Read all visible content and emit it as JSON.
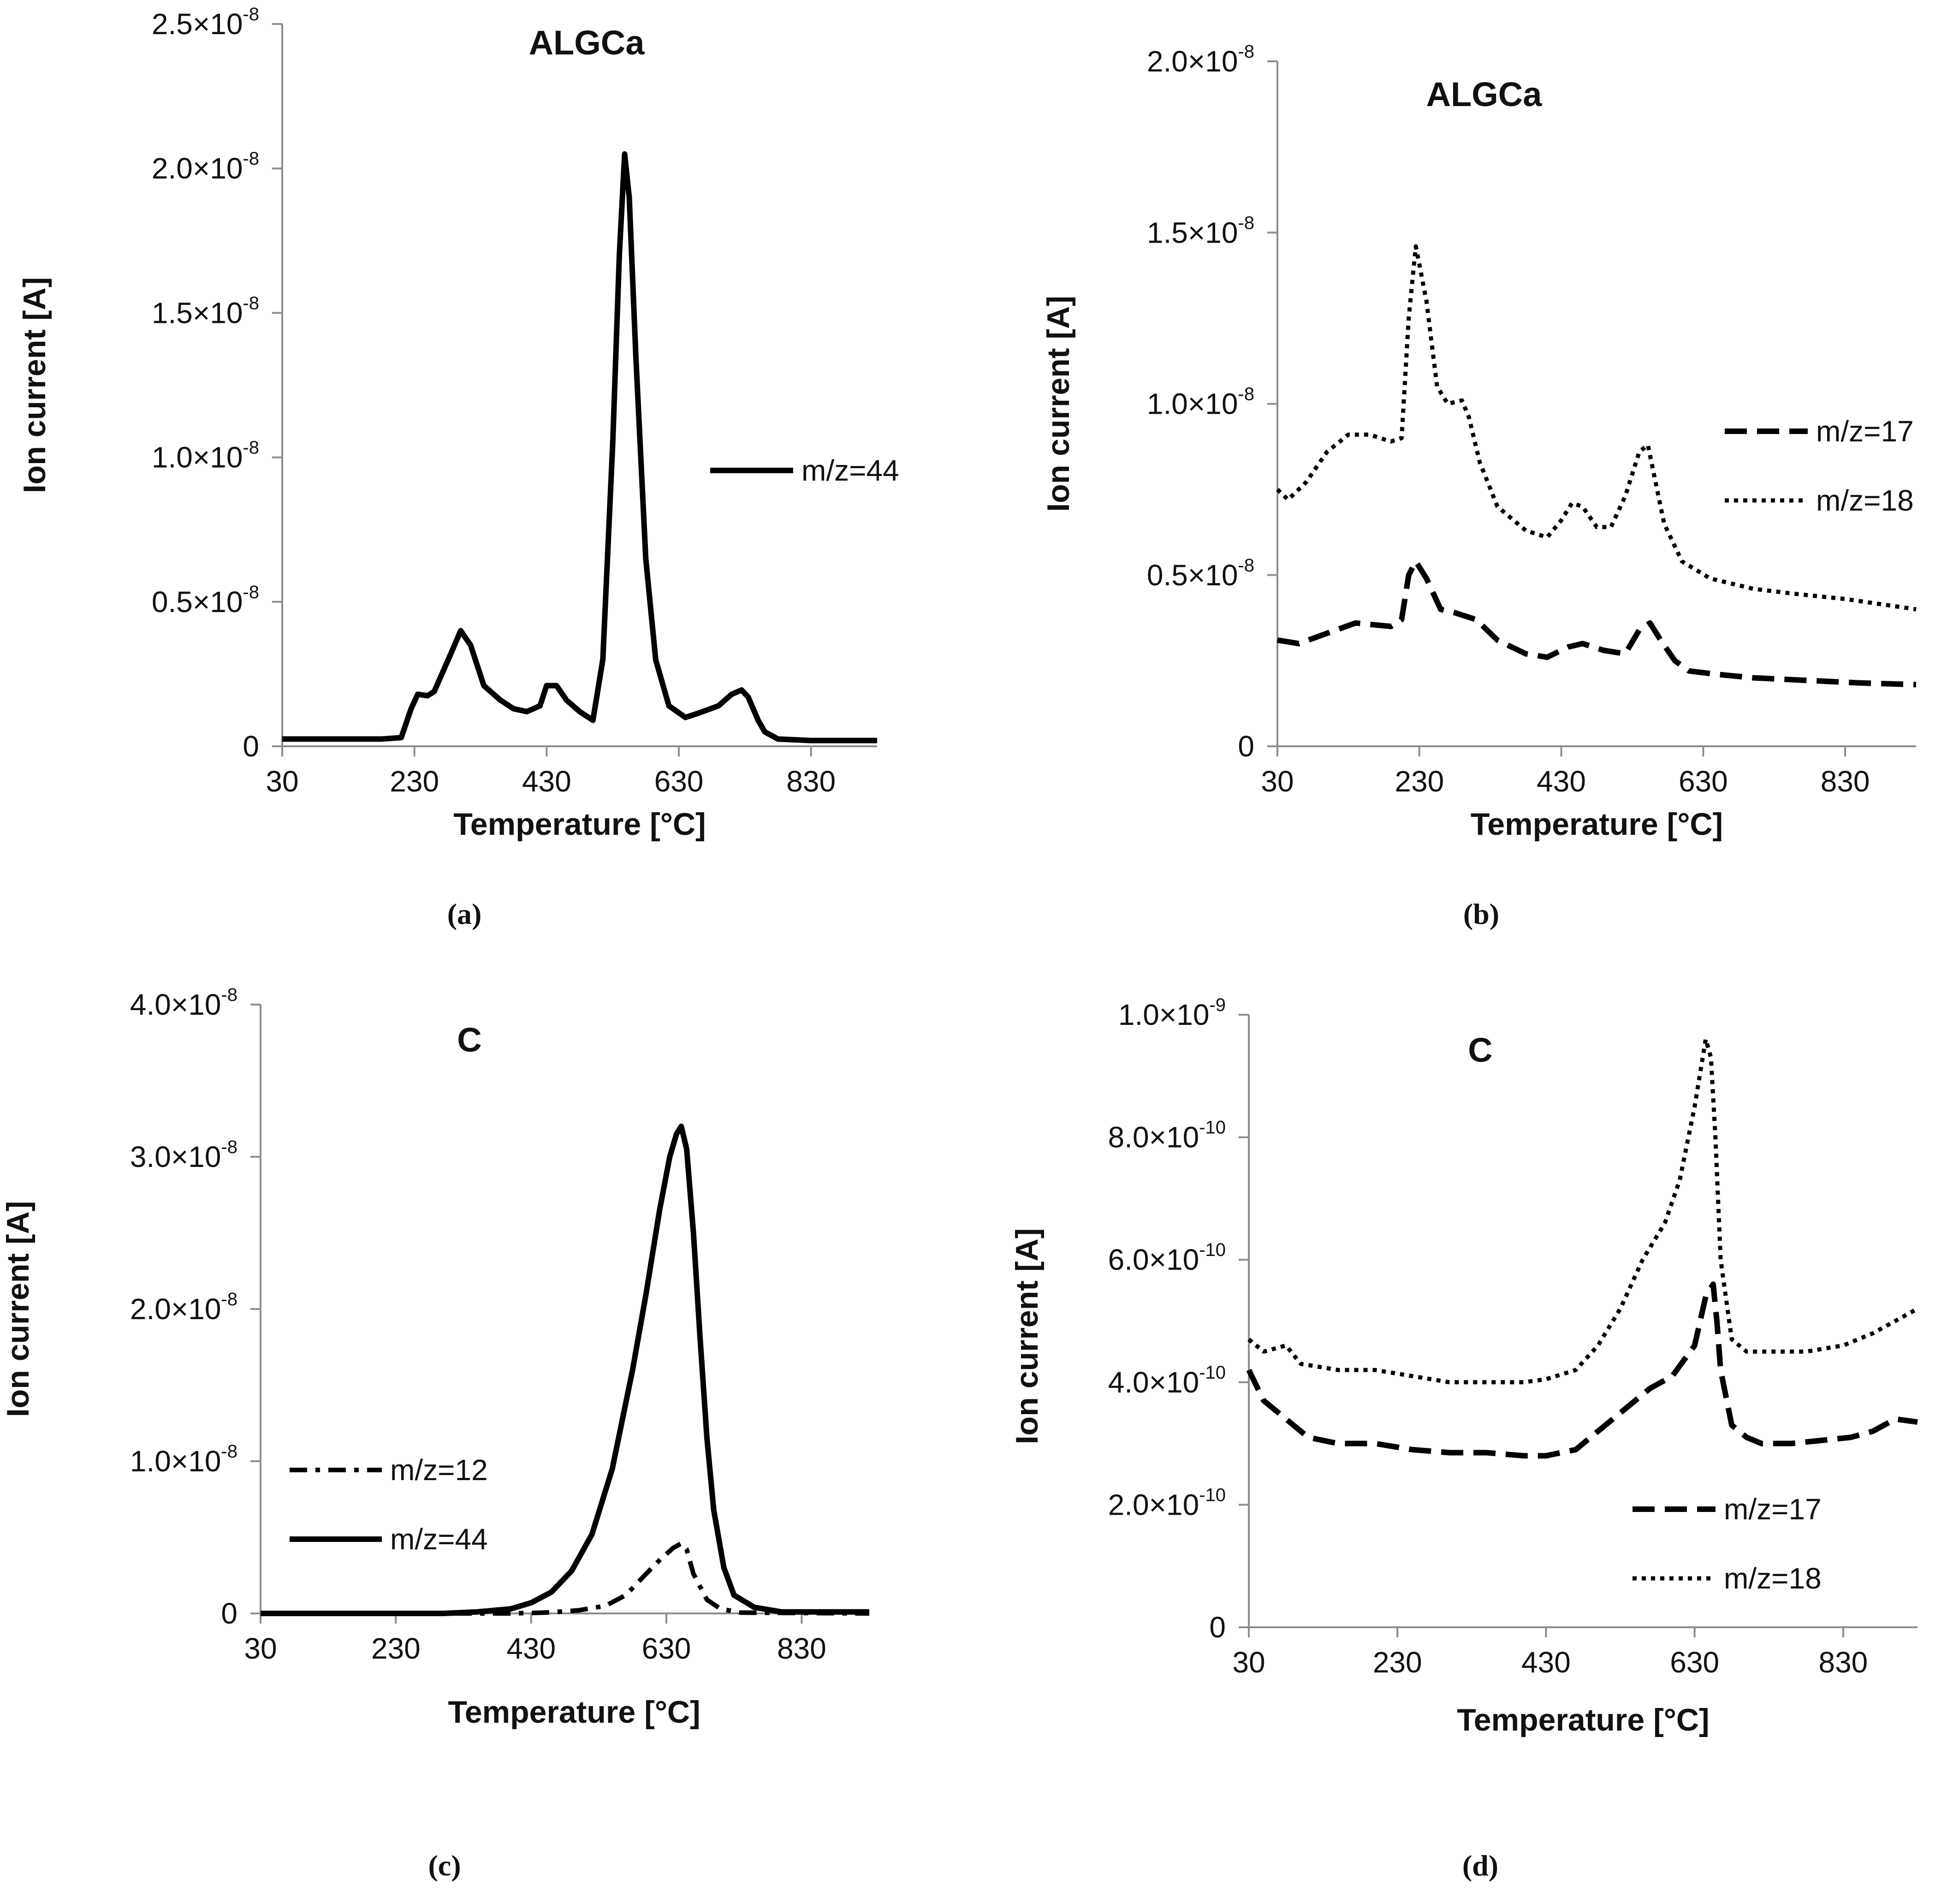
{
  "chart_data": [
    {
      "id": "a",
      "type": "line",
      "title": "ALGCa",
      "caption": "(a)",
      "xlabel": "Temperature [°C]",
      "ylabel": "Ion current [A]",
      "xlim": [
        30,
        930
      ],
      "ylim": [
        0,
        2.5e-08
      ],
      "xticks": [
        30,
        230,
        430,
        630,
        830
      ],
      "yticks": [
        {
          "value": 0,
          "mant": "0",
          "exp": ""
        },
        {
          "value": 5e-09,
          "mant": "0.5×10",
          "exp": "-8"
        },
        {
          "value": 1e-08,
          "mant": "1.0×10",
          "exp": "-8"
        },
        {
          "value": 1.5e-08,
          "mant": "1.5×10",
          "exp": "-8"
        },
        {
          "value": 2e-08,
          "mant": "2.0×10",
          "exp": "-8"
        },
        {
          "value": 2.5e-08,
          "mant": "2.5×10",
          "exp": "-8"
        }
      ],
      "legend_position": "right-middle",
      "series": [
        {
          "name": "m/z=44",
          "style": "solid",
          "x": [
            30,
            100,
            180,
            210,
            225,
            235,
            250,
            260,
            285,
            300,
            315,
            335,
            360,
            380,
            400,
            420,
            430,
            445,
            460,
            480,
            500,
            515,
            530,
            540,
            548,
            555,
            565,
            580,
            595,
            615,
            640,
            660,
            690,
            710,
            725,
            735,
            750,
            760,
            780,
            830,
            930
          ],
          "y": [
            2.5e-10,
            2.5e-10,
            2.5e-10,
            3e-10,
            1.3e-09,
            1.8e-09,
            1.75e-09,
            1.9e-09,
            3.2e-09,
            4e-09,
            3.5e-09,
            2.1e-09,
            1.6e-09,
            1.3e-09,
            1.2e-09,
            1.4e-09,
            2.1e-09,
            2.1e-09,
            1.6e-09,
            1.2e-09,
            9e-10,
            3e-09,
            1.05e-08,
            1.7e-08,
            2.05e-08,
            1.9e-08,
            1.35e-08,
            6.5e-09,
            3e-09,
            1.4e-09,
            1e-09,
            1.15e-09,
            1.4e-09,
            1.8e-09,
            1.95e-09,
            1.7e-09,
            9e-10,
            5e-10,
            2.5e-10,
            2e-10,
            2e-10
          ]
        }
      ]
    },
    {
      "id": "b",
      "type": "line",
      "title": "ALGCa",
      "caption": "(b)",
      "xlabel": "Temperature [°C]",
      "ylabel": "Ion current [A]",
      "xlim": [
        30,
        930
      ],
      "ylim": [
        0,
        2e-08
      ],
      "xticks": [
        30,
        230,
        430,
        630,
        830
      ],
      "yticks": [
        {
          "value": 0,
          "mant": "0",
          "exp": ""
        },
        {
          "value": 5e-09,
          "mant": "0.5×10",
          "exp": "-8"
        },
        {
          "value": 1e-08,
          "mant": "1.0×10",
          "exp": "-8"
        },
        {
          "value": 1.5e-08,
          "mant": "1.5×10",
          "exp": "-8"
        },
        {
          "value": 2e-08,
          "mant": "2.0×10",
          "exp": "-8"
        }
      ],
      "legend_position": "right-middle",
      "series": [
        {
          "name": "m/z=17",
          "style": "dashed",
          "x": [
            30,
            60,
            100,
            140,
            190,
            205,
            215,
            225,
            240,
            260,
            280,
            310,
            340,
            380,
            410,
            440,
            460,
            490,
            520,
            540,
            555,
            570,
            590,
            610,
            650,
            700,
            750,
            800,
            850,
            930
          ],
          "y": [
            3.1e-09,
            3e-09,
            3.3e-09,
            3.6e-09,
            3.5e-09,
            3.7e-09,
            5e-09,
            5.4e-09,
            4.9e-09,
            4e-09,
            3.9e-09,
            3.7e-09,
            3.1e-09,
            2.7e-09,
            2.6e-09,
            2.9e-09,
            3e-09,
            2.8e-09,
            2.7e-09,
            3.4e-09,
            3.6e-09,
            3.1e-09,
            2.5e-09,
            2.2e-09,
            2.1e-09,
            2e-09,
            1.95e-09,
            1.9e-09,
            1.85e-09,
            1.8e-09
          ]
        },
        {
          "name": "m/z=18",
          "style": "dotted",
          "x": [
            30,
            45,
            70,
            100,
            130,
            160,
            190,
            205,
            215,
            225,
            240,
            255,
            270,
            290,
            300,
            315,
            340,
            380,
            410,
            430,
            445,
            460,
            480,
            500,
            520,
            540,
            552,
            560,
            575,
            600,
            640,
            700,
            760,
            830,
            930
          ],
          "y": [
            7.5e-09,
            7.2e-09,
            7.7e-09,
            8.6e-09,
            9.1e-09,
            9.1e-09,
            8.9e-09,
            9e-09,
            1.25e-08,
            1.46e-08,
            1.3e-08,
            1.05e-08,
            1e-08,
            1.01e-08,
            9.6e-09,
            8.3e-09,
            7e-09,
            6.3e-09,
            6.1e-09,
            6.6e-09,
            7.1e-09,
            7e-09,
            6.4e-09,
            6.4e-09,
            7.3e-09,
            8.6e-09,
            8.8e-09,
            8e-09,
            6.5e-09,
            5.4e-09,
            4.9e-09,
            4.6e-09,
            4.45e-09,
            4.3e-09,
            4e-09
          ]
        }
      ]
    },
    {
      "id": "c",
      "type": "line",
      "title": "C",
      "caption": "(c)",
      "xlabel": "Temperature [°C]",
      "ylabel": "Ion current [A]",
      "xlim": [
        30,
        930
      ],
      "ylim": [
        0,
        4e-08
      ],
      "xticks": [
        30,
        230,
        430,
        630,
        830
      ],
      "yticks": [
        {
          "value": 0,
          "mant": "0",
          "exp": ""
        },
        {
          "value": 1e-08,
          "mant": "1.0×10",
          "exp": "-8"
        },
        {
          "value": 2e-08,
          "mant": "2.0×10",
          "exp": "-8"
        },
        {
          "value": 3e-08,
          "mant": "3.0×10",
          "exp": "-8"
        },
        {
          "value": 4e-08,
          "mant": "4.0×10",
          "exp": "-8"
        }
      ],
      "legend_position": "left-lower",
      "series": [
        {
          "name": "m/z=12",
          "style": "dashdot",
          "x": [
            30,
            400,
            450,
            500,
            540,
            570,
            600,
            620,
            640,
            652,
            660,
            670,
            690,
            710,
            740,
            930
          ],
          "y": [
            0,
            0,
            5e-11,
            2e-10,
            5e-10,
            1.2e-09,
            2.6e-09,
            3.5e-09,
            4.3e-09,
            4.6e-09,
            4.2e-09,
            2.6e-09,
            9e-10,
            3e-10,
            5e-11,
            0
          ]
        },
        {
          "name": "m/z=44",
          "style": "solid",
          "x": [
            30,
            300,
            350,
            400,
            430,
            460,
            490,
            520,
            550,
            580,
            600,
            620,
            635,
            645,
            652,
            660,
            670,
            680,
            690,
            700,
            715,
            730,
            760,
            800,
            930
          ],
          "y": [
            0,
            0,
            1e-10,
            3e-10,
            7e-10,
            1.4e-09,
            2.8e-09,
            5.2e-09,
            9.5e-09,
            1.6e-08,
            2.1e-08,
            2.65e-08,
            3e-08,
            3.15e-08,
            3.2e-08,
            3.05e-08,
            2.5e-08,
            1.8e-08,
            1.15e-08,
            6.8e-09,
            3e-09,
            1.2e-09,
            4e-10,
            1e-10,
            1e-10
          ]
        }
      ]
    },
    {
      "id": "d",
      "type": "line",
      "title": "C",
      "caption": "(d)",
      "xlabel": "Temperature [°C]",
      "ylabel": "Ion current [A]",
      "xlim": [
        30,
        930
      ],
      "ylim": [
        0,
        1e-09
      ],
      "xticks": [
        30,
        230,
        430,
        630,
        830
      ],
      "yticks": [
        {
          "value": 0,
          "mant": "0",
          "exp": ""
        },
        {
          "value": 2e-10,
          "mant": "2.0×10",
          "exp": "-10"
        },
        {
          "value": 4e-10,
          "mant": "4.0×10",
          "exp": "-10"
        },
        {
          "value": 6e-10,
          "mant": "6.0×10",
          "exp": "-10"
        },
        {
          "value": 8e-10,
          "mant": "8.0×10",
          "exp": "-10"
        },
        {
          "value": 1e-09,
          "mant": "1.0×10",
          "exp": "-9"
        }
      ],
      "legend_position": "bottom-right",
      "series": [
        {
          "name": "m/z=17",
          "style": "dashed",
          "x": [
            30,
            50,
            80,
            110,
            150,
            200,
            250,
            300,
            350,
            400,
            430,
            470,
            500,
            530,
            570,
            600,
            630,
            645,
            655,
            660,
            665,
            680,
            700,
            720,
            760,
            800,
            840,
            870,
            900,
            930
          ],
          "y": [
            4.2e-10,
            3.7e-10,
            3.4e-10,
            3.1e-10,
            3e-10,
            3e-10,
            2.9e-10,
            2.85e-10,
            2.85e-10,
            2.8e-10,
            2.8e-10,
            2.9e-10,
            3.2e-10,
            3.5e-10,
            3.9e-10,
            4.1e-10,
            4.6e-10,
            5.4e-10,
            5.6e-10,
            5e-10,
            4.2e-10,
            3.3e-10,
            3.1e-10,
            3e-10,
            3e-10,
            3.05e-10,
            3.1e-10,
            3.2e-10,
            3.4e-10,
            3.35e-10
          ]
        },
        {
          "name": "m/z=18",
          "style": "dotted",
          "x": [
            30,
            50,
            80,
            100,
            150,
            200,
            250,
            300,
            350,
            400,
            430,
            470,
            500,
            530,
            560,
            590,
            610,
            630,
            645,
            652,
            658,
            665,
            680,
            700,
            730,
            780,
            830,
            870,
            900,
            930
          ],
          "y": [
            4.7e-10,
            4.5e-10,
            4.6e-10,
            4.3e-10,
            4.2e-10,
            4.2e-10,
            4.1e-10,
            4e-10,
            4e-10,
            4e-10,
            4.05e-10,
            4.2e-10,
            4.6e-10,
            5.2e-10,
            6e-10,
            6.6e-10,
            7.3e-10,
            8.5e-10,
            9.6e-10,
            9.3e-10,
            8e-10,
            6e-10,
            4.7e-10,
            4.5e-10,
            4.5e-10,
            4.5e-10,
            4.6e-10,
            4.8e-10,
            5e-10,
            5.2e-10
          ]
        }
      ]
    }
  ]
}
